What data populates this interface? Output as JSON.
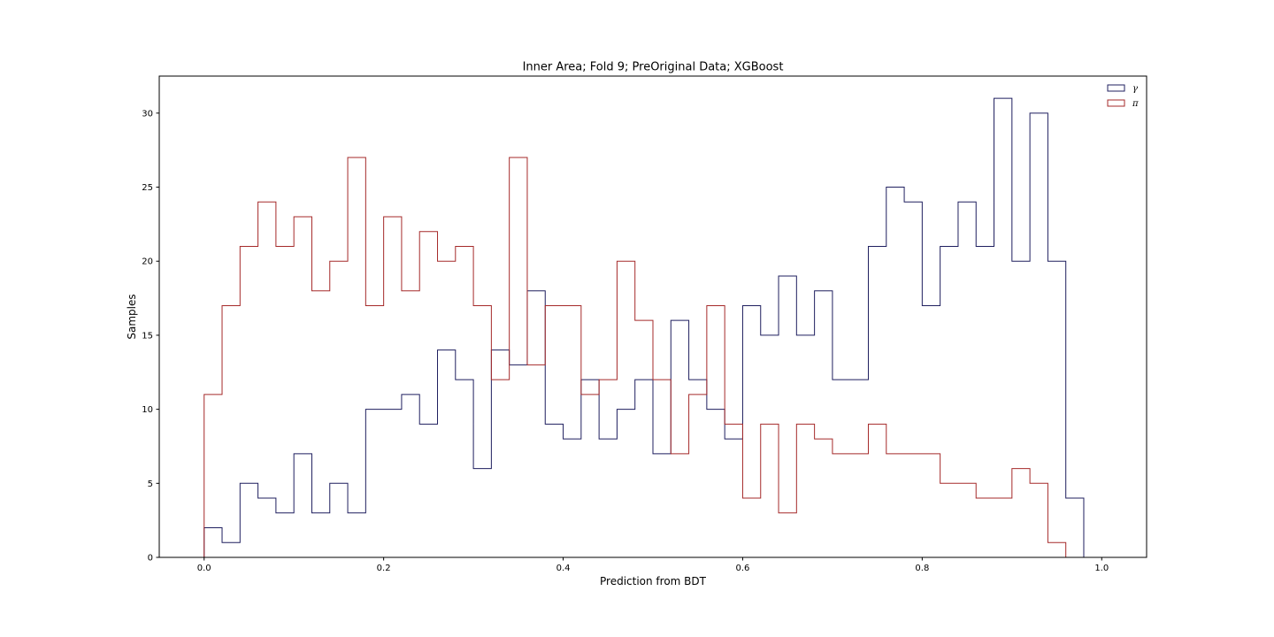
{
  "chart_data": {
    "type": "histogram",
    "title": "Inner Area; Fold 9; PreOriginal Data; XGBoost",
    "xlabel": "Prediction from BDT",
    "ylabel": "Samples",
    "xlim": [
      -0.05,
      1.05
    ],
    "ylim": [
      0,
      32.5
    ],
    "xticks": [
      "0.0",
      "0.2",
      "0.4",
      "0.6",
      "0.8",
      "1.0"
    ],
    "yticks": [
      "0",
      "5",
      "10",
      "15",
      "20",
      "25",
      "30"
    ],
    "bin_edges": [
      0.0,
      0.02,
      0.04,
      0.06,
      0.08,
      0.1,
      0.12,
      0.14,
      0.16,
      0.18,
      0.2,
      0.22,
      0.24,
      0.26,
      0.28,
      0.3,
      0.32,
      0.34,
      0.36,
      0.38,
      0.4,
      0.42,
      0.44,
      0.46,
      0.48,
      0.5,
      0.52,
      0.54,
      0.56,
      0.58,
      0.6,
      0.62,
      0.64,
      0.66,
      0.68,
      0.7,
      0.72,
      0.74,
      0.76,
      0.78,
      0.8,
      0.82,
      0.84,
      0.86,
      0.88,
      0.9,
      0.92,
      0.94,
      0.96,
      0.98,
      1.0
    ],
    "legend_position": "top-right",
    "grid": false,
    "series": [
      {
        "name": "γ",
        "color": "#1f1f5f",
        "values": [
          2,
          1,
          5,
          4,
          3,
          7,
          3,
          5,
          3,
          10,
          10,
          11,
          9,
          14,
          12,
          6,
          14,
          13,
          18,
          9,
          8,
          12,
          8,
          10,
          12,
          7,
          16,
          12,
          10,
          8,
          17,
          15,
          19,
          15,
          18,
          12,
          12,
          21,
          25,
          24,
          17,
          21,
          24,
          21,
          31,
          20,
          30,
          20,
          4,
          0
        ]
      },
      {
        "name": "π",
        "color": "#a52a2a",
        "values": [
          11,
          17,
          21,
          24,
          21,
          23,
          18,
          20,
          27,
          17,
          23,
          18,
          22,
          20,
          21,
          17,
          12,
          27,
          13,
          17,
          17,
          11,
          12,
          20,
          16,
          12,
          7,
          11,
          17,
          9,
          4,
          9,
          3,
          9,
          8,
          7,
          7,
          9,
          7,
          7,
          7,
          5,
          5,
          4,
          4,
          6,
          5,
          1,
          0,
          0
        ]
      }
    ]
  }
}
